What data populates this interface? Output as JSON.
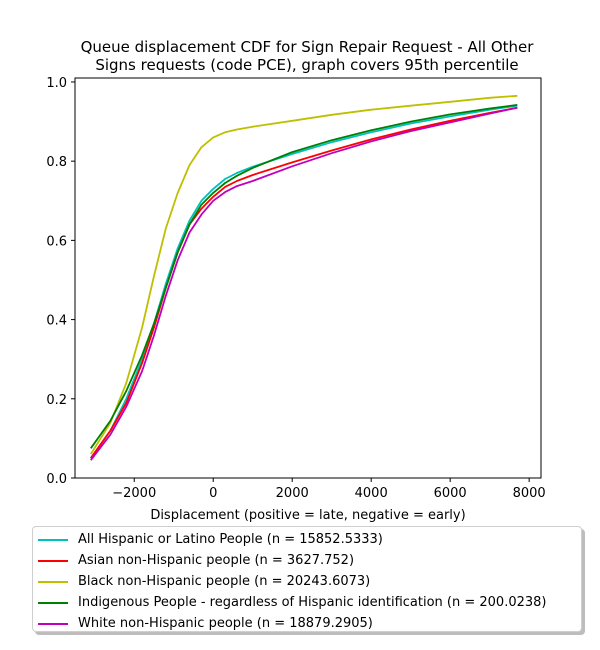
{
  "chart_data": {
    "type": "line",
    "title_lines": [
      "Queue displacement CDF for Sign Repair Request - All Other",
      "Signs  requests (code PCE), graph covers 95th percentile"
    ],
    "xlabel": "Displacement (positive = late, negative = early)",
    "ylabel": "",
    "xlim": [
      -3500,
      8300
    ],
    "ylim": [
      0.0,
      1.01
    ],
    "xticks": [
      -2000,
      0,
      2000,
      4000,
      6000,
      8000
    ],
    "xtick_labels": [
      "−2000",
      "0",
      "2000",
      "4000",
      "6000",
      "8000"
    ],
    "yticks": [
      0.0,
      0.2,
      0.4,
      0.6,
      0.8,
      1.0
    ],
    "ytick_labels": [
      "0.0",
      "0.2",
      "0.4",
      "0.6",
      "0.8",
      "1.0"
    ],
    "grid": false,
    "legend_position": "below",
    "series": [
      {
        "name": "All Hispanic or Latino People (n = 15852.5333)",
        "color": "#00bfbf",
        "x": [
          -3100,
          -2600,
          -2200,
          -1800,
          -1500,
          -1200,
          -900,
          -600,
          -300,
          0,
          300,
          600,
          1000,
          2000,
          3000,
          4000,
          5000,
          6000,
          7000,
          7700
        ],
        "y": [
          0.05,
          0.12,
          0.2,
          0.3,
          0.39,
          0.49,
          0.58,
          0.65,
          0.7,
          0.73,
          0.755,
          0.77,
          0.786,
          0.818,
          0.848,
          0.873,
          0.895,
          0.913,
          0.93,
          0.94
        ]
      },
      {
        "name": "Asian non-Hispanic people (n = 3627.752)",
        "color": "#ff0000",
        "x": [
          -3100,
          -2600,
          -2200,
          -1800,
          -1500,
          -1200,
          -900,
          -600,
          -300,
          0,
          300,
          600,
          1000,
          2000,
          3000,
          4000,
          5000,
          6000,
          7000,
          7700
        ],
        "y": [
          0.05,
          0.12,
          0.19,
          0.29,
          0.38,
          0.48,
          0.57,
          0.64,
          0.68,
          0.71,
          0.735,
          0.75,
          0.765,
          0.797,
          0.827,
          0.855,
          0.88,
          0.902,
          0.922,
          0.935
        ]
      },
      {
        "name": "Black non-Hispanic people (n = 20243.6073)",
        "color": "#bfbf00",
        "x": [
          -3100,
          -2600,
          -2200,
          -1800,
          -1500,
          -1200,
          -900,
          -600,
          -300,
          0,
          300,
          600,
          1000,
          2000,
          3000,
          4000,
          5000,
          6000,
          7000,
          7700
        ],
        "y": [
          0.06,
          0.14,
          0.24,
          0.38,
          0.51,
          0.63,
          0.72,
          0.79,
          0.835,
          0.86,
          0.873,
          0.88,
          0.887,
          0.902,
          0.917,
          0.93,
          0.94,
          0.95,
          0.96,
          0.965
        ]
      },
      {
        "name": "Indigenous People - regardless of Hispanic identification (n = 200.0238)",
        "color": "#008000",
        "x": [
          -3100,
          -2600,
          -2200,
          -1800,
          -1500,
          -1200,
          -900,
          -600,
          -300,
          0,
          300,
          600,
          1000,
          2000,
          3000,
          4000,
          5000,
          6000,
          7000,
          7700
        ],
        "y": [
          0.075,
          0.145,
          0.22,
          0.31,
          0.39,
          0.48,
          0.57,
          0.64,
          0.69,
          0.72,
          0.745,
          0.763,
          0.783,
          0.823,
          0.853,
          0.878,
          0.9,
          0.918,
          0.933,
          0.942
        ]
      },
      {
        "name": "White non-Hispanic people (n = 18879.2905)",
        "color": "#bf00bf",
        "x": [
          -3100,
          -2600,
          -2200,
          -1800,
          -1500,
          -1200,
          -900,
          -600,
          -300,
          0,
          300,
          600,
          1000,
          2000,
          3000,
          4000,
          5000,
          6000,
          7000,
          7700
        ],
        "y": [
          0.045,
          0.11,
          0.18,
          0.27,
          0.36,
          0.46,
          0.55,
          0.62,
          0.665,
          0.7,
          0.722,
          0.737,
          0.75,
          0.787,
          0.82,
          0.85,
          0.876,
          0.898,
          0.92,
          0.935
        ]
      }
    ]
  }
}
